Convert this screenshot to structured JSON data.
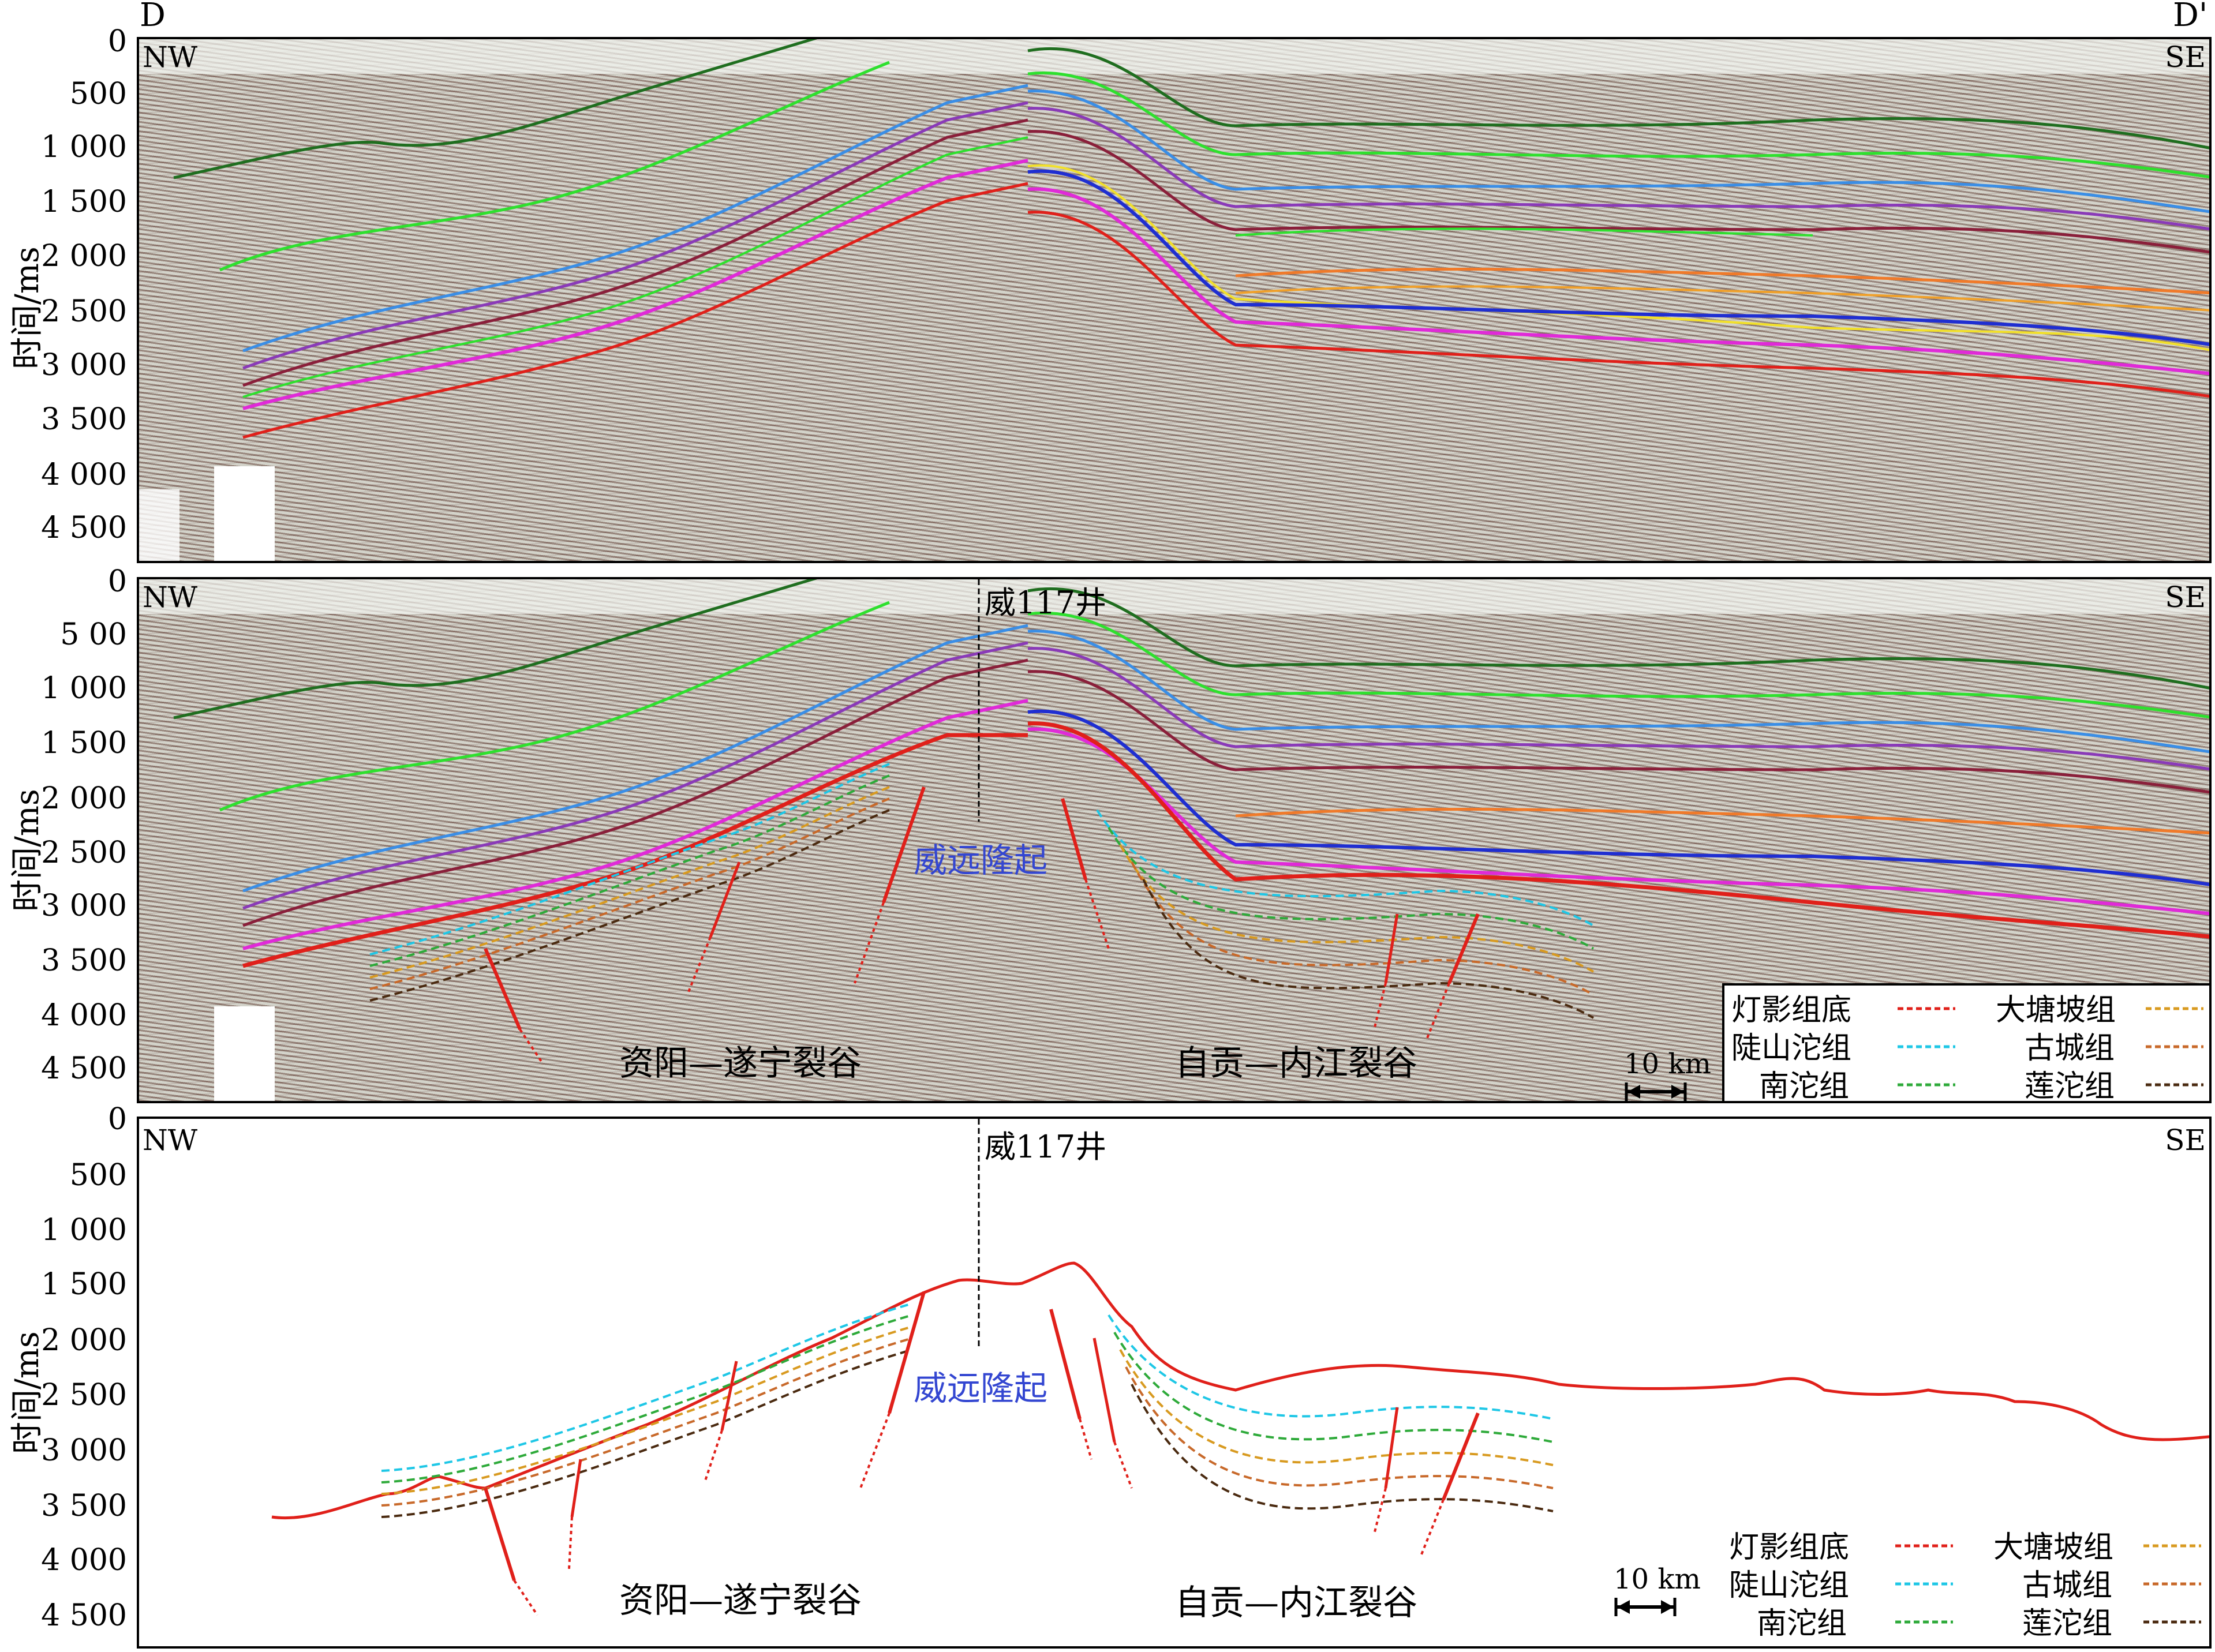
{
  "section_labels": {
    "left": "D",
    "right": "D'"
  },
  "orientation": {
    "left": "NW",
    "right": "SE"
  },
  "y_axis": {
    "label": "时间/ms",
    "panel1_ticks": [
      "0",
      "500",
      "1 000",
      "1 500",
      "2 000",
      "2 500",
      "3 000",
      "3 500",
      "4 000",
      "4 500"
    ],
    "panel2_ticks": [
      "0",
      "5 00",
      "1 000",
      "1 500",
      "2 000",
      "2 500",
      "3 000",
      "3 500",
      "4 000",
      "4 500"
    ],
    "panel3_ticks": [
      "0",
      "500",
      "1 000",
      "1 500",
      "2 000",
      "2 500",
      "3 000",
      "3 500",
      "4 000",
      "4 500"
    ]
  },
  "well": "威117井",
  "uplift": "威远隆起",
  "rifts": {
    "left": "资阳—遂宁裂谷",
    "right": "自贡—内江裂谷"
  },
  "scale_bar": "10 km",
  "legend": [
    {
      "label": "灯影组底",
      "color": "#e0201a"
    },
    {
      "label": "大塘坡组",
      "color": "#d89a20"
    },
    {
      "label": "陡山沱组",
      "color": "#1ec7e6"
    },
    {
      "label": "古城组",
      "color": "#c8692a"
    },
    {
      "label": "南沱组",
      "color": "#2eaa3a"
    },
    {
      "label": "莲沱组",
      "color": "#4a2a10"
    }
  ],
  "horizon_colors": {
    "dark_green": "#1f6e1f",
    "light_green": "#2ee02e",
    "sky_blue": "#3a8ee6",
    "purple": "#8a3ab8",
    "maroon": "#8a1f3a",
    "orange": "#f07a2a",
    "yellow": "#f2e02a",
    "blue": "#1f2ed1",
    "magenta": "#e02ad8",
    "red": "#e0201a"
  }
}
